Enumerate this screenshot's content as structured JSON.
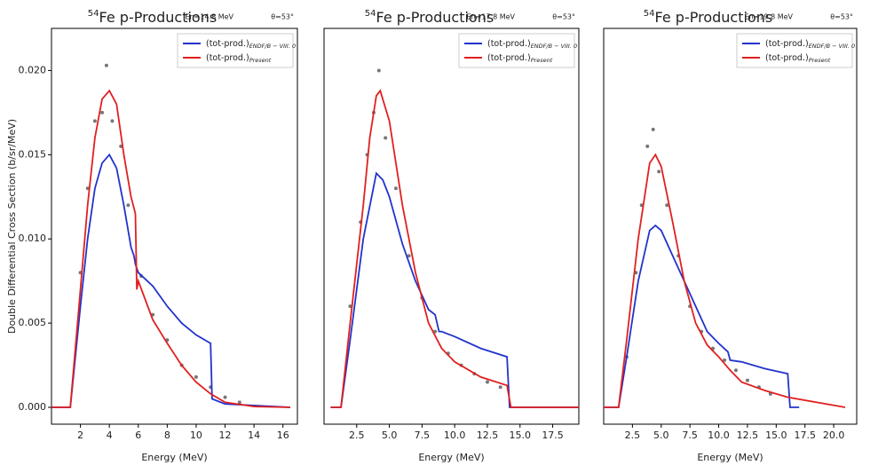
{
  "chart_data": [
    {
      "type": "line",
      "title_superscript": "54",
      "title": "Fe p-Productions",
      "annotation_energy": "En=14.8 MeV",
      "annotation_angle": "θ=53°",
      "xlabel": "Energy (MeV)",
      "ylabel": "Double Differential Cross Section (b/sr/MeV)",
      "xlim": [
        0,
        17
      ],
      "xticks": [
        2,
        4,
        6,
        8,
        10,
        12,
        14,
        16
      ],
      "ylim": [
        -0.001,
        0.0225
      ],
      "yticks": [
        {
          "value": 0,
          "label": "0.000"
        },
        {
          "value": 0.005,
          "label": "0.005"
        },
        {
          "value": 0.01,
          "label": "0.010"
        },
        {
          "value": 0.015,
          "label": "0.015"
        },
        {
          "value": 0.02,
          "label": "0.020"
        }
      ],
      "series": [
        {
          "name": "(tot-prod.)",
          "subscript": "ENDF/B − VIII. 0",
          "color": "#2233cc",
          "x": [
            0,
            1.3,
            2,
            2.5,
            3,
            3.5,
            4,
            4.5,
            5,
            5.5,
            5.7,
            5.8,
            6,
            7,
            8,
            9,
            10,
            11,
            11.1,
            12,
            16.5
          ],
          "values": [
            0,
            0,
            0.006,
            0.01,
            0.013,
            0.0145,
            0.015,
            0.0142,
            0.012,
            0.0095,
            0.009,
            0.0085,
            0.008,
            0.0072,
            0.006,
            0.005,
            0.0043,
            0.0038,
            0.0005,
            0.0002,
            0
          ]
        },
        {
          "name": "(tot-prod.)",
          "subscript": "Present",
          "color": "#e02020",
          "x": [
            0,
            1.3,
            2,
            2.5,
            3,
            3.5,
            4,
            4.5,
            5,
            5.5,
            5.8,
            5.9,
            6,
            7,
            8,
            9,
            10,
            11,
            12,
            14,
            16.5
          ],
          "values": [
            0,
            0,
            0.007,
            0.012,
            0.016,
            0.0183,
            0.0188,
            0.018,
            0.015,
            0.0125,
            0.0115,
            0.007,
            0.0075,
            0.0052,
            0.0038,
            0.0025,
            0.0015,
            0.0008,
            0.0003,
            5e-05,
            0
          ]
        }
      ],
      "points": {
        "color": "#777777",
        "x": [
          2,
          2.5,
          3,
          3.5,
          3.8,
          4.2,
          4.8,
          5.3,
          6.2,
          7,
          8,
          9,
          10,
          11,
          12,
          13
        ],
        "y": [
          0.008,
          0.013,
          0.017,
          0.0175,
          0.0203,
          0.017,
          0.0155,
          0.012,
          0.0078,
          0.0055,
          0.004,
          0.0025,
          0.0018,
          0.0012,
          0.0006,
          0.0003
        ]
      }
    },
    {
      "type": "line",
      "title_superscript": "54",
      "title": "Fe p-Productions",
      "annotation_energy": "En=17.8 MeV",
      "annotation_angle": "θ=53°",
      "xlabel": "Energy (MeV)",
      "xlim": [
        0,
        19.5
      ],
      "xticks": [
        2.5,
        {
          "value": 5,
          "label": "5.0"
        },
        7.5,
        {
          "value": 10,
          "label": "10.0"
        },
        12.5,
        {
          "value": 15,
          "label": "15.0"
        },
        17.5
      ],
      "ylim": [
        -0.001,
        0.0225
      ],
      "series": [
        {
          "name": "(tot-prod.)",
          "subscript": "ENDF/B − VIII. 0",
          "color": "#2233cc",
          "x": [
            0.5,
            1.3,
            2,
            3,
            4,
            4.5,
            5,
            6,
            7,
            8,
            8.5,
            8.8,
            9,
            10,
            12,
            14,
            14.2,
            19.5
          ],
          "values": [
            0,
            0,
            0.004,
            0.01,
            0.0139,
            0.0135,
            0.0125,
            0.0097,
            0.0075,
            0.0058,
            0.0055,
            0.0045,
            0.0045,
            0.0042,
            0.0035,
            0.003,
            0,
            0
          ]
        },
        {
          "name": "(tot-prod.)",
          "subscript": "Present",
          "color": "#e02020",
          "x": [
            0.5,
            1.3,
            2,
            3,
            3.5,
            4,
            4.3,
            5,
            6,
            7,
            8,
            9,
            10,
            12,
            14,
            14.3,
            19.5
          ],
          "values": [
            0,
            0,
            0.005,
            0.012,
            0.016,
            0.0185,
            0.0188,
            0.017,
            0.012,
            0.008,
            0.005,
            0.0035,
            0.0027,
            0.0018,
            0.0013,
            0,
            0
          ]
        }
      ],
      "points": {
        "color": "#777777",
        "x": [
          2,
          2.8,
          3.3,
          3.8,
          4.2,
          4.7,
          5.5,
          6.5,
          7.5,
          8.5,
          9.5,
          10.5,
          11.5,
          12.5,
          13.5
        ],
        "y": [
          0.006,
          0.011,
          0.015,
          0.0175,
          0.02,
          0.016,
          0.013,
          0.009,
          0.0065,
          0.0045,
          0.0032,
          0.0025,
          0.002,
          0.0015,
          0.0012
        ]
      }
    },
    {
      "type": "line",
      "title_superscript": "54",
      "title": "Fe p-Productions",
      "annotation_energy": "En=19.8 MeV",
      "annotation_angle": "θ=53°",
      "xlabel": "Energy (MeV)",
      "xlim": [
        0,
        22
      ],
      "xticks": [
        2.5,
        {
          "value": 5,
          "label": "5.0"
        },
        7.5,
        {
          "value": 10,
          "label": "10.0"
        },
        12.5,
        {
          "value": 15,
          "label": "15.0"
        },
        17.5,
        {
          "value": 20,
          "label": "20.0"
        }
      ],
      "ylim": [
        -0.001,
        0.0225
      ],
      "series": [
        {
          "name": "(tot-prod.)",
          "subscript": "ENDF/B − VIII. 0",
          "color": "#2233cc",
          "x": [
            0,
            1.3,
            2,
            3,
            4,
            4.5,
            5,
            6,
            7,
            8,
            9,
            10,
            10.8,
            11,
            12,
            14,
            16,
            16.2,
            17
          ],
          "values": [
            0,
            0,
            0.003,
            0.0075,
            0.0105,
            0.0108,
            0.0105,
            0.009,
            0.0075,
            0.006,
            0.0045,
            0.0038,
            0.0033,
            0.0028,
            0.0027,
            0.0023,
            0.002,
            0,
            0
          ]
        },
        {
          "name": "(tot-prod.)",
          "subscript": "Present",
          "color": "#e02020",
          "x": [
            0,
            1.3,
            2,
            3,
            4,
            4.5,
            5,
            6,
            7,
            8,
            9,
            10,
            11,
            12,
            14,
            16,
            21
          ],
          "values": [
            0,
            0,
            0.004,
            0.01,
            0.0145,
            0.015,
            0.0143,
            0.011,
            0.0075,
            0.005,
            0.0037,
            0.003,
            0.0022,
            0.0015,
            0.001,
            0.0006,
            0
          ]
        }
      ],
      "points": {
        "color": "#777777",
        "x": [
          2,
          2.8,
          3.3,
          3.8,
          4.3,
          4.8,
          5.5,
          6.5,
          7.5,
          8.5,
          9.5,
          10.5,
          11.5,
          12.5,
          13.5,
          14.5
        ],
        "y": [
          0.003,
          0.008,
          0.012,
          0.0155,
          0.0165,
          0.014,
          0.012,
          0.009,
          0.006,
          0.0045,
          0.0035,
          0.0028,
          0.0022,
          0.0016,
          0.0012,
          0.0008
        ]
      }
    }
  ]
}
